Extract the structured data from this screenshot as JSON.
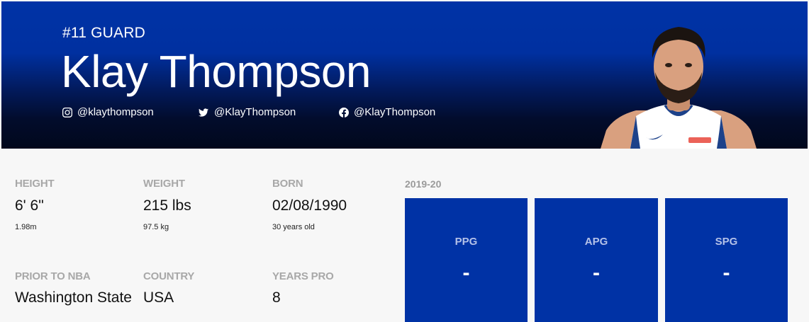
{
  "player": {
    "number_position": "#11 GUARD",
    "name": "Klay Thompson"
  },
  "socials": [
    {
      "icon": "instagram-icon",
      "handle": "@klaythompson"
    },
    {
      "icon": "twitter-icon",
      "handle": "@KlayThompson"
    },
    {
      "icon": "facebook-icon",
      "handle": "@KlayThompson"
    }
  ],
  "bio": {
    "height": {
      "label": "HEIGHT",
      "value": "6' 6\"",
      "sub": "1.98m"
    },
    "weight": {
      "label": "WEIGHT",
      "value": "215 lbs",
      "sub": "97.5 kg"
    },
    "born": {
      "label": "BORN",
      "value": "02/08/1990",
      "sub": "30 years old"
    },
    "prior": {
      "label": "PRIOR TO NBA",
      "value": "Washington State"
    },
    "country": {
      "label": "COUNTRY",
      "value": "USA"
    },
    "years_pro": {
      "label": "YEARS PRO",
      "value": "8"
    }
  },
  "season": {
    "label": "2019-20",
    "stats": [
      {
        "name": "PPG",
        "value": "-"
      },
      {
        "name": "APG",
        "value": "-"
      },
      {
        "name": "SPG",
        "value": "-"
      }
    ]
  },
  "colors": {
    "hero_blue": "#0033a6",
    "hero_dark": "#01081c",
    "stat_box_blue": "#0032a5",
    "label_gray": "#a8a8a8"
  }
}
